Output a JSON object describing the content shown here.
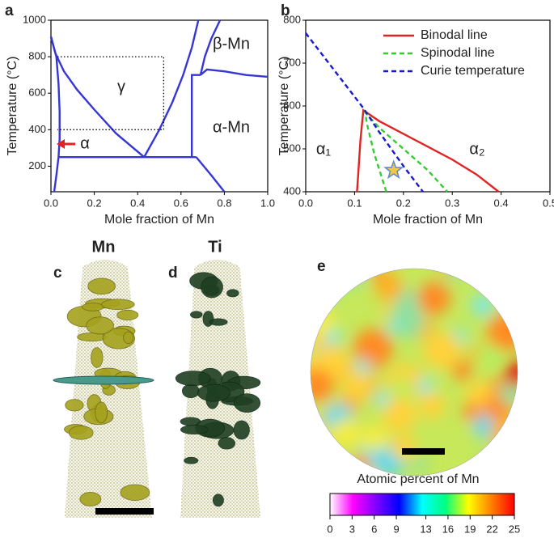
{
  "chart_data": [
    {
      "type": "line",
      "panel_label": "a",
      "xlabel": "Mole fraction of Mn",
      "ylabel": "Temperature (°C)",
      "xlim": [
        0,
        1
      ],
      "ylim": [
        60,
        1000
      ],
      "xticks": [
        {
          "value": 0,
          "label": "0.0"
        },
        {
          "value": 0.2,
          "label": "0.2"
        },
        {
          "value": 0.4,
          "label": "0.4"
        },
        {
          "value": 0.6,
          "label": "0.6"
        },
        {
          "value": 0.8,
          "label": "0.8"
        },
        {
          "value": 1,
          "label": "1.0"
        }
      ],
      "yticks": [
        200,
        400,
        600,
        800,
        1000
      ],
      "annotations": [
        "β-Mn",
        "γ",
        "α-Mn",
        "α"
      ],
      "series": [
        {
          "color": "#3636d6",
          "x": [
            0,
            0.025,
            0.035,
            0.04,
            0.04,
            0.035,
            0.025,
            0.015
          ],
          "y": [
            910,
            800,
            650,
            500,
            350,
            250,
            150,
            60
          ]
        },
        {
          "color": "#3636d6",
          "x": [
            0,
            0.02,
            0.06,
            0.12,
            0.2,
            0.3,
            0.43
          ],
          "y": [
            910,
            820,
            720,
            620,
            510,
            380,
            250
          ]
        },
        {
          "color": "#3636d6",
          "x": [
            0.035,
            0.67
          ],
          "y": [
            250,
            250
          ]
        },
        {
          "color": "#3636d6",
          "x": [
            0.43,
            0.5,
            0.56,
            0.61,
            0.65,
            0.68
          ],
          "y": [
            250,
            400,
            550,
            700,
            850,
            1000
          ]
        },
        {
          "color": "#3636d6",
          "x": [
            0.67,
            0.74,
            0.8
          ],
          "y": [
            250,
            150,
            60
          ]
        },
        {
          "color": "#3636d6",
          "x": [
            0.65,
            0.65,
            0.69
          ],
          "y": [
            250,
            700,
            700
          ]
        },
        {
          "color": "#3636d6",
          "x": [
            0.69,
            0.71,
            0.74,
            0.78
          ],
          "y": [
            700,
            800,
            900,
            1000
          ]
        },
        {
          "color": "#3636d6",
          "x": [
            0.69,
            0.72,
            0.8,
            0.9,
            1
          ],
          "y": [
            700,
            730,
            720,
            700,
            690
          ]
        },
        {
          "color": "#000000",
          "style": "dotted",
          "x": [
            0.03,
            0.52,
            0.52,
            0.03
          ],
          "y": [
            800,
            800,
            400,
            400
          ]
        }
      ]
    },
    {
      "type": "line",
      "panel_label": "b",
      "xlabel": "Mole fraction of Mn",
      "ylabel": "Temperature (°C)",
      "xlim": [
        0,
        0.5
      ],
      "ylim": [
        400,
        800
      ],
      "xticks": [
        {
          "value": 0,
          "label": "0.0"
        },
        0.1,
        0.2,
        0.3,
        0.4,
        0.5
      ],
      "yticks": [
        400,
        500,
        600,
        700,
        800
      ],
      "annotations": [
        "α₁",
        "α₂"
      ],
      "star": {
        "x": 0.18,
        "y": 450,
        "color": "#f2c744"
      },
      "series": [
        {
          "name": "Binodal line",
          "color": "#e02424",
          "x": [
            0.105,
            0.108,
            0.112,
            0.118,
            0.15,
            0.2,
            0.25,
            0.3,
            0.35,
            0.395
          ],
          "y": [
            400,
            450,
            520,
            590,
            565,
            535,
            505,
            475,
            440,
            400
          ]
        },
        {
          "name": "Spinodal line",
          "color": "#33cc33",
          "style": "dashed",
          "x": [
            0.165,
            0.14,
            0.125,
            0.122,
            0.15,
            0.2,
            0.25,
            0.29
          ],
          "y": [
            400,
            490,
            560,
            585,
            550,
            500,
            450,
            400
          ]
        },
        {
          "name": "Curie temperature",
          "color": "#1a1acc",
          "style": "dashed",
          "x": [
            0,
            0.118,
            0.15,
            0.2,
            0.24
          ],
          "y": [
            770,
            595,
            540,
            460,
            400
          ]
        }
      ]
    }
  ],
  "panels": {
    "c": {
      "label": "c",
      "title": "Mn",
      "color": "#a6a21e"
    },
    "d": {
      "label": "d",
      "title": "Ti",
      "color": "#1f3f22"
    },
    "e": {
      "label": "e",
      "colorbar_label": "Atomic percent of Mn",
      "colorbar_lim": [
        0,
        25
      ],
      "colorbar_ticks": [
        0,
        3,
        6,
        9,
        13,
        16,
        19,
        22,
        25
      ],
      "colors": [
        "#ffffff",
        "#ff00ff",
        "#8000ff",
        "#0000ff",
        "#00ffff",
        "#00ff80",
        "#ffff00",
        "#ff8000",
        "#ff0000"
      ]
    }
  }
}
